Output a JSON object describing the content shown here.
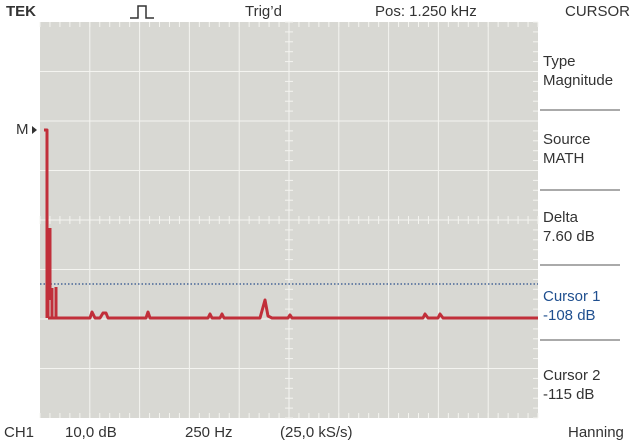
{
  "header": {
    "brand": "TEK",
    "trigger": "Trig’d",
    "position": "Pos: 1.250 kHz",
    "menu_title": "CURSOR"
  },
  "marker": "M",
  "menu": [
    {
      "label": "Type",
      "value": "Magnitude"
    },
    {
      "label": "Source",
      "value": "MATH"
    },
    {
      "label": "Delta",
      "value": "7.60 dB"
    },
    {
      "label": "Cursor 1",
      "value": "-108 dB"
    },
    {
      "label": "Cursor 2",
      "value": "-115 dB"
    }
  ],
  "footer": {
    "channel": "CH1",
    "scale": "10,0 dB",
    "frequency": "250 Hz",
    "sample_rate": "(25,0 kS/s)",
    "window": "Hanning"
  }
}
